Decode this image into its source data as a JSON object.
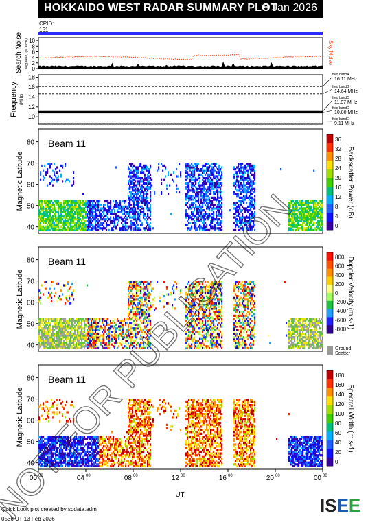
{
  "header": {
    "title": "HOKKAIDO WEST RADAR SUMMARY PLOT",
    "date": "8 Jan 2026"
  },
  "cpid": {
    "label": "CPID:",
    "value": "151"
  },
  "noise_panel": {
    "ylabel": "Search Noise",
    "sublabel": "log(noise) (a. 10^N)",
    "ticks": [
      "0",
      "2",
      "4",
      "6",
      "8",
      "10"
    ],
    "right_label": "Sky Noise"
  },
  "freq_panel": {
    "ylabel": "Frequency",
    "unit": "(MHz)",
    "ticks": [
      "10",
      "12",
      "14",
      "16",
      "18"
    ],
    "bands": [
      {
        "name": "freq bandA",
        "value": "16.11 MHz"
      },
      {
        "name": "freq bandB",
        "value": "14.64 MHz"
      },
      {
        "name": "freq bandC",
        "value": "11.07 MHz"
      },
      {
        "name": "freq bandD",
        "value": "10.80 MHz"
      },
      {
        "name": "freq bandE",
        "value": "9.11 MHz"
      }
    ]
  },
  "panels": [
    {
      "id": "power",
      "beam": "Beam 11",
      "ylabel": "Magnetic Latitude",
      "yticks": [
        "40",
        "50",
        "60",
        "70",
        "80"
      ],
      "cbar_label": "Backscatter Power (dB)",
      "cbar_ticks": [
        "0",
        "4",
        "8",
        "12",
        "16",
        "20",
        "24",
        "28",
        "32",
        "36"
      ],
      "cbar_colors": [
        "#3a00a0",
        "#1010ff",
        "#2060ff",
        "#00b0ff",
        "#00c080",
        "#40d000",
        "#a0e000",
        "#ffe000",
        "#ff9000",
        "#ff3000",
        "#c00000"
      ]
    },
    {
      "id": "velocity",
      "beam": "Beam 11",
      "ylabel": "Magnetic Latitude",
      "yticks": [
        "40",
        "50",
        "60",
        "70",
        "80"
      ],
      "cbar_label": "Doppler Velocity (m s-1)",
      "cbar_ticks": [
        "-800",
        "-600",
        "-400",
        "-200",
        "0",
        "200",
        "400",
        "600",
        "800"
      ],
      "cbar_colors": [
        "#ff1000",
        "#ff5000",
        "#ff9000",
        "#ffd000",
        "#ffff80",
        "#a0ff60",
        "#20c040",
        "#20a0ff",
        "#2020ff",
        "#300090"
      ],
      "ground_label": "Ground Scatter"
    },
    {
      "id": "width",
      "beam": "Beam 11",
      "ylabel": "Magnetic Latitude",
      "yticks": [
        "40",
        "50",
        "60",
        "70",
        "80"
      ],
      "cbar_label": "Spectral Width (m s-1)",
      "cbar_ticks": [
        "0",
        "20",
        "40",
        "60",
        "80",
        "100",
        "120",
        "140",
        "160",
        "180"
      ],
      "cbar_colors": [
        "#3a00a0",
        "#1010ff",
        "#2060ff",
        "#00b0ff",
        "#00c080",
        "#40d000",
        "#a0e000",
        "#ffe000",
        "#ff9000",
        "#ff3000",
        "#c00000"
      ]
    }
  ],
  "xaxis": {
    "label": "UT",
    "ticks": [
      "00",
      "04",
      "08",
      "12",
      "16",
      "20",
      "00"
    ]
  },
  "watermark": "NOT FOR PUBLICATION",
  "footer": {
    "line1": "Quick Look plot created by sddata.adm",
    "line2": "0536 UT 13 Feb 2026"
  },
  "logo": {
    "text": "ISEE"
  },
  "chart_data": [
    {
      "type": "heatmap",
      "title": "Backscatter Power",
      "ylabel": "Magnetic Latitude",
      "xlabel": "UT",
      "ylim": [
        37,
        86
      ],
      "xlim": [
        0,
        24
      ],
      "colorbar_range": [
        0,
        36
      ],
      "colorbar_label": "Backscatter Power (dB)"
    },
    {
      "type": "heatmap",
      "title": "Doppler Velocity",
      "ylabel": "Magnetic Latitude",
      "xlabel": "UT",
      "ylim": [
        37,
        86
      ],
      "xlim": [
        0,
        24
      ],
      "colorbar_range": [
        -800,
        800
      ],
      "colorbar_label": "Doppler Velocity (m s-1)"
    },
    {
      "type": "heatmap",
      "title": "Spectral Width",
      "ylabel": "Magnetic Latitude",
      "xlabel": "UT",
      "ylim": [
        37,
        86
      ],
      "xlim": [
        0,
        24
      ],
      "colorbar_range": [
        0,
        180
      ],
      "colorbar_label": "Spectral Width (m s-1)"
    }
  ]
}
